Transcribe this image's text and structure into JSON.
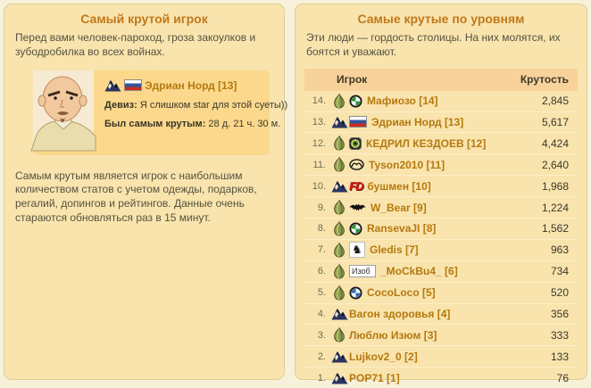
{
  "accents": {
    "panel_bg": "#f9e4ae",
    "card_bg": "#fbd88c",
    "table_header_bg": "#f7d29a",
    "title_color": "#c0791c",
    "name_link_color": "#b5790f"
  },
  "left_panel": {
    "title": "Самый крутой игрок",
    "intro": "Перед вами человек-пароход, гроза закоулков и зубодробилка во всех войнах.",
    "player": {
      "clan_icon": "mountain-clan-icon",
      "flag_icon": "russia-flag-icon",
      "name": "Эдриан Норд [13]",
      "motto_label": "Девиз:",
      "motto": "Я слишком star для этой суеты))",
      "was_label": "Был самым крутым:",
      "was_value": "28 д. 21 ч. 30 м."
    },
    "footnote": "Самым крутым является игрок с наибольшим количеством статов с учетом одежды, подарков, регалий, допингов и рейтингов. Данные очень стараются обновляться раз в 15 минут."
  },
  "right_panel": {
    "title": "Самые крутые по уровням",
    "intro": "Эти люди — гордость столицы. На них молятся, их боятся и уважают.",
    "table": {
      "col_player": "Игрок",
      "col_value": "Крутость",
      "rows": [
        {
          "rank": "14.",
          "faction": "garlic",
          "emblem": "bmw-green",
          "name": "Мафиозо [14]",
          "value": "2,845"
        },
        {
          "rank": "13.",
          "faction": "mountain",
          "emblem": "flag-russia",
          "name": "Эдриан Норд [13]",
          "value": "5,617"
        },
        {
          "rank": "12.",
          "faction": "garlic",
          "emblem": "badge",
          "name": "КЕДРИЛ КЕЗДОЕВ [12]",
          "value": "4,424"
        },
        {
          "rank": "11.",
          "faction": "garlic",
          "emblem": "mazda",
          "name": "Tyson2010 [11]",
          "value": "2,640"
        },
        {
          "rank": "10.",
          "faction": "mountain",
          "emblem": "fd",
          "name": "бушмен [10]",
          "value": "1,968"
        },
        {
          "rank": "9.",
          "faction": "garlic",
          "emblem": "bat",
          "name": "W_Bear [9]",
          "value": "1,224"
        },
        {
          "rank": "8.",
          "faction": "garlic",
          "emblem": "bmw-green",
          "name": "RansevaJI [8]",
          "value": "1,562"
        },
        {
          "rank": "7.",
          "faction": "garlic",
          "emblem": "knight",
          "name": "Gledis [7]",
          "value": "963"
        },
        {
          "rank": "6.",
          "faction": "garlic",
          "emblem": "broken-img",
          "emblem_text": "Изоб",
          "name": "_MoCkBu4_ [6]",
          "value": "734"
        },
        {
          "rank": "5.",
          "faction": "garlic",
          "emblem": "bmw-blue",
          "name": "CocoLoco [5]",
          "value": "520"
        },
        {
          "rank": "4.",
          "faction": "mountain",
          "emblem": null,
          "name": "Вагон здоровья [4]",
          "value": "356"
        },
        {
          "rank": "3.",
          "faction": "garlic",
          "emblem": null,
          "name": "Люблю Изюм [3]",
          "value": "333"
        },
        {
          "rank": "2.",
          "faction": "mountain",
          "emblem": null,
          "name": "Lujkov2_0 [2]",
          "value": "133"
        },
        {
          "rank": "1.",
          "faction": "mountain",
          "emblem": null,
          "name": "POP71 [1]",
          "value": "76"
        }
      ]
    }
  }
}
